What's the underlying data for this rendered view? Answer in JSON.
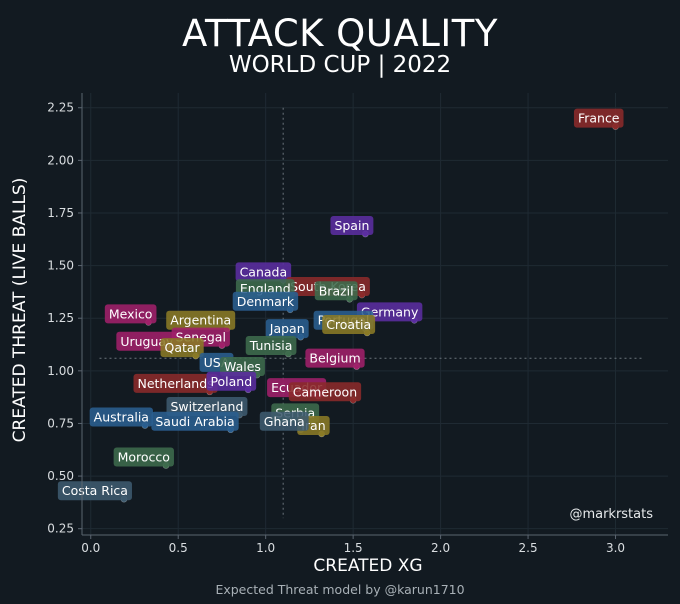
{
  "chart_data": {
    "type": "scatter",
    "title": "ATTACK QUALITY",
    "subtitle": "WORLD CUP | 2022",
    "xlabel": "CREATED XG",
    "ylabel": "CREATED THREAT (LIVE BALLS)",
    "xlim": [
      -0.05,
      3.3
    ],
    "ylim": [
      0.22,
      2.32
    ],
    "xticks": [
      "0.0",
      "0.5",
      "1.0",
      "1.5",
      "2.0",
      "2.5",
      "3.0"
    ],
    "yticks": [
      "0.25",
      "0.50",
      "0.75",
      "1.00",
      "1.25",
      "1.50",
      "1.75",
      "2.00",
      "2.25"
    ],
    "grid": true,
    "reference_lines": {
      "x": 1.1,
      "y": 1.06
    },
    "watermark": "@markrstats",
    "credit": "Expected Threat model by @karun1710",
    "points": [
      {
        "name": "France",
        "x": 3.0,
        "y": 2.16,
        "color": "#8b2a2a"
      },
      {
        "name": "Spain",
        "x": 1.57,
        "y": 1.65,
        "color": "#5b2ea0"
      },
      {
        "name": "Canada",
        "x": 1.1,
        "y": 1.43,
        "color": "#5b2ea0"
      },
      {
        "name": "South Korea",
        "x": 1.55,
        "y": 1.36,
        "color": "#8b2a2a"
      },
      {
        "name": "England",
        "x": 1.12,
        "y": 1.35,
        "color": "#3d6b4c"
      },
      {
        "name": "Brazil",
        "x": 1.48,
        "y": 1.34,
        "color": "#3d6b4c"
      },
      {
        "name": "Denmark",
        "x": 1.14,
        "y": 1.29,
        "color": "#2a5f8f"
      },
      {
        "name": "Germany",
        "x": 1.85,
        "y": 1.24,
        "color": "#5b2ea0"
      },
      {
        "name": "Mexico",
        "x": 0.33,
        "y": 1.23,
        "color": "#a0206a"
      },
      {
        "name": "Argentina",
        "x": 0.78,
        "y": 1.2,
        "color": "#8a7a25"
      },
      {
        "name": "Portugal",
        "x": 1.57,
        "y": 1.2,
        "color": "#2a5f8f"
      },
      {
        "name": "Japan",
        "x": 1.2,
        "y": 1.16,
        "color": "#2a5f8f"
      },
      {
        "name": "Croatia",
        "x": 1.58,
        "y": 1.18,
        "color": "#8a7a25"
      },
      {
        "name": "Uruguay",
        "x": 0.45,
        "y": 1.1,
        "color": "#a0206a"
      },
      {
        "name": "Senegal",
        "x": 0.75,
        "y": 1.12,
        "color": "#a0206a"
      },
      {
        "name": "Tunisia",
        "x": 1.13,
        "y": 1.08,
        "color": "#3d6b4c"
      },
      {
        "name": "Qatar",
        "x": 0.6,
        "y": 1.07,
        "color": "#8a7a25"
      },
      {
        "name": "USA",
        "x": 0.77,
        "y": 1.0,
        "color": "#2a5f8f"
      },
      {
        "name": "Wales",
        "x": 0.95,
        "y": 0.98,
        "color": "#3d6b4c"
      },
      {
        "name": "Belgium",
        "x": 1.52,
        "y": 1.02,
        "color": "#a0206a"
      },
      {
        "name": "Netherlands",
        "x": 0.68,
        "y": 0.9,
        "color": "#8b2a2a"
      },
      {
        "name": "Poland",
        "x": 0.9,
        "y": 0.91,
        "color": "#5b2ea0"
      },
      {
        "name": "Ecuador",
        "x": 1.3,
        "y": 0.88,
        "color": "#a0206a"
      },
      {
        "name": "Cameroon",
        "x": 1.5,
        "y": 0.86,
        "color": "#8b2a2a"
      },
      {
        "name": "Switzerland",
        "x": 0.85,
        "y": 0.79,
        "color": "#3d5a6e"
      },
      {
        "name": "Australia",
        "x": 0.31,
        "y": 0.74,
        "color": "#2a5f8f"
      },
      {
        "name": "Serbia",
        "x": 1.26,
        "y": 0.76,
        "color": "#3d6b4c"
      },
      {
        "name": "Saudi Arabia",
        "x": 0.8,
        "y": 0.72,
        "color": "#2a5f8f"
      },
      {
        "name": "Iran",
        "x": 1.32,
        "y": 0.7,
        "color": "#8a7a25"
      },
      {
        "name": "Ghana",
        "x": 1.2,
        "y": 0.72,
        "color": "#3d5a6e"
      },
      {
        "name": "Morocco",
        "x": 0.43,
        "y": 0.55,
        "color": "#3d6b4c"
      },
      {
        "name": "Costa Rica",
        "x": 0.19,
        "y": 0.39,
        "color": "#3d5a6e"
      }
    ]
  }
}
